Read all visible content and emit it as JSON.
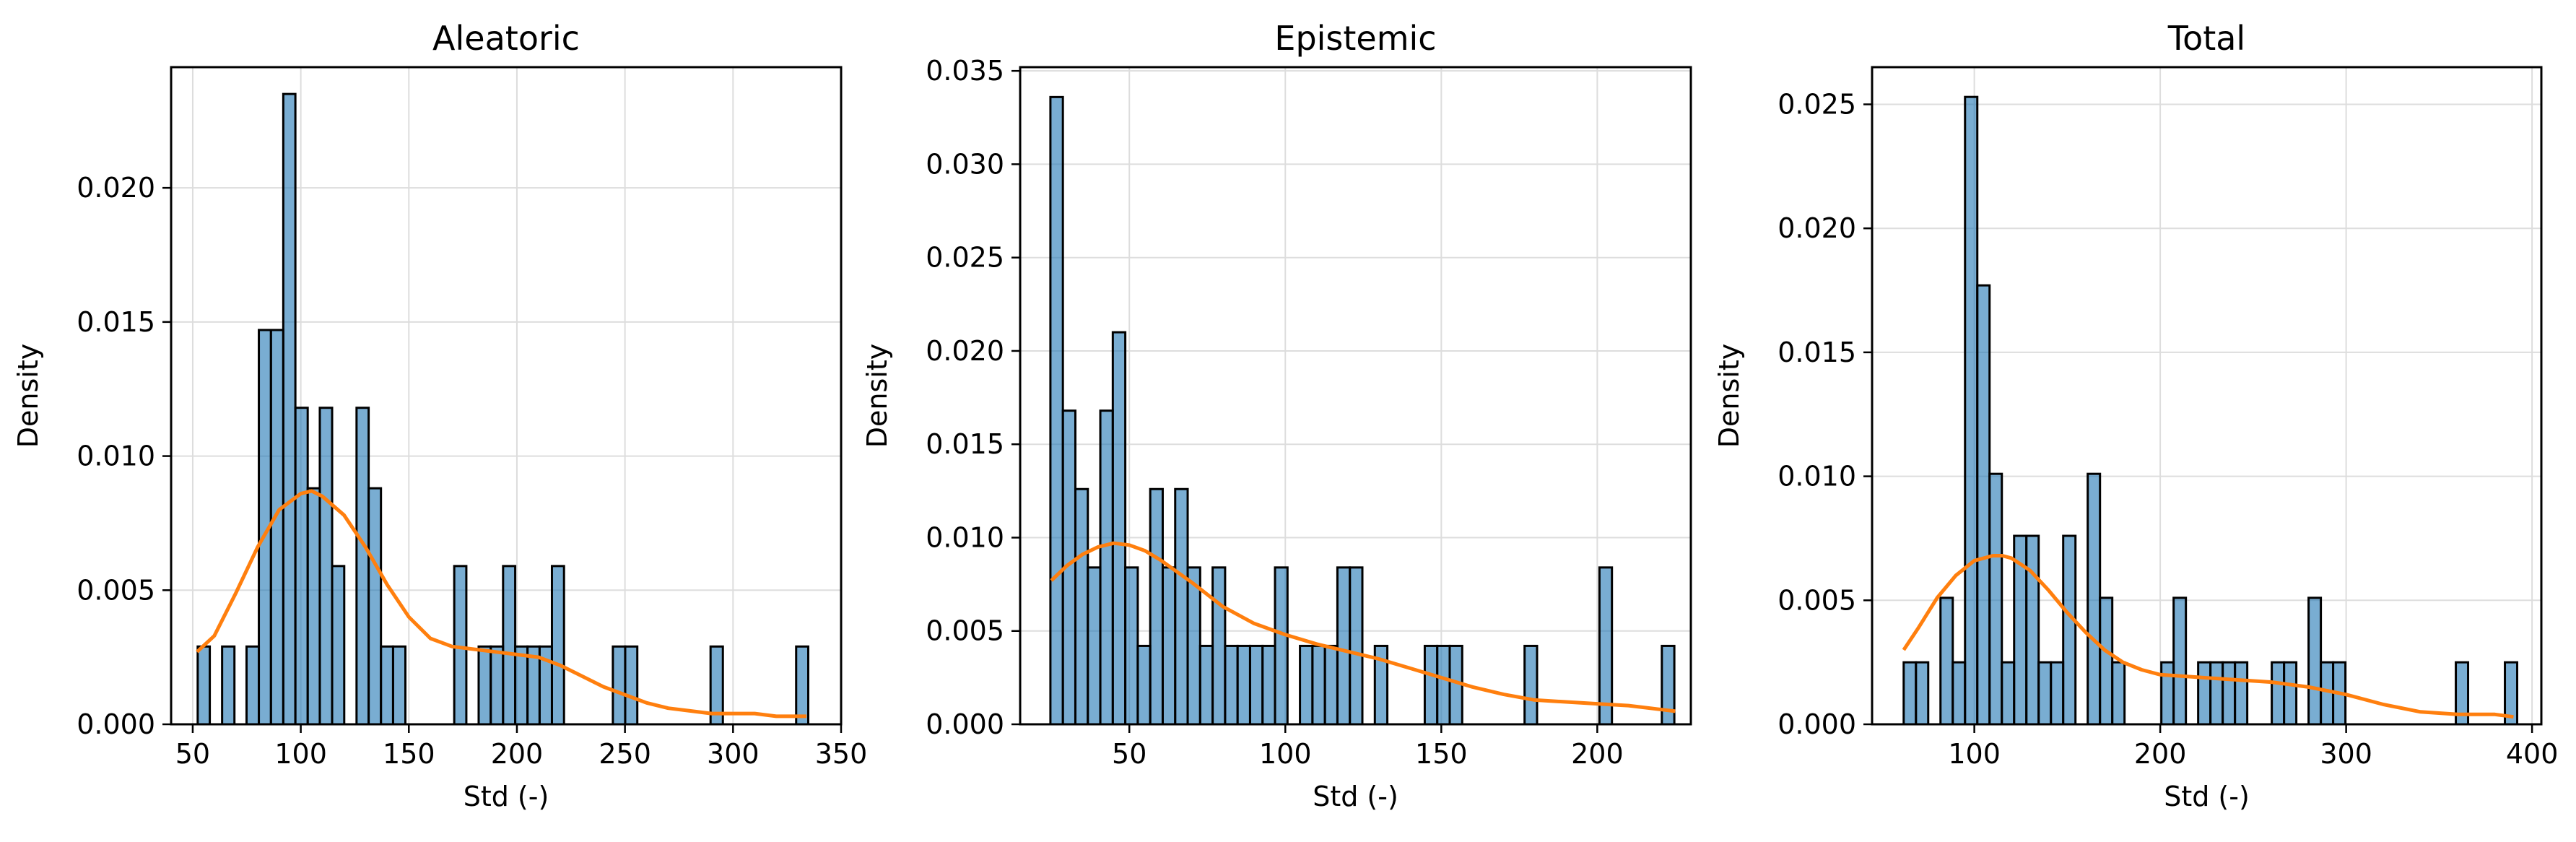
{
  "colors": {
    "bar_fill": "#1f77b4",
    "bar_edge": "#000000",
    "kde_line": "#ff7f0e",
    "grid": "#dddddd"
  },
  "chart_data": [
    {
      "type": "bar",
      "title": "Aleatoric",
      "xlabel": "Std (-)",
      "ylabel": "Density",
      "xlim": [
        40,
        350
      ],
      "ylim": [
        0,
        0.0245
      ],
      "xticks": [
        50,
        100,
        150,
        200,
        250,
        300,
        350
      ],
      "yticks": [
        0.0,
        0.005,
        0.01,
        0.015,
        0.02
      ],
      "xtick_labels": [
        "50",
        "100",
        "150",
        "200",
        "250",
        "300",
        "350"
      ],
      "ytick_labels": [
        "0.000",
        "0.005",
        "0.010",
        "0.015",
        "0.020"
      ],
      "grid": true,
      "bin_edges": [
        52.3,
        57.9,
        63.6,
        69.3,
        74.9,
        80.6,
        86.2,
        91.9,
        97.5,
        103.2,
        108.8,
        114.5,
        120.1,
        125.8,
        131.4,
        137.1,
        142.7,
        148.4,
        154.0,
        159.7,
        165.3,
        171.0,
        176.6,
        182.3,
        187.9,
        193.6,
        199.2,
        204.9,
        210.5,
        216.2,
        221.8,
        227.5,
        233.1,
        238.8,
        244.4,
        250.1,
        255.7,
        261.4,
        267.0,
        272.7,
        278.3,
        284.0,
        289.6,
        295.3,
        300.9,
        306.6,
        312.2,
        317.9,
        323.5,
        329.2,
        334.8
      ],
      "densities": [
        0.0029,
        0,
        0.0029,
        0,
        0.0029,
        0.0147,
        0.0147,
        0.0235,
        0.0118,
        0.0088,
        0.0118,
        0.0059,
        0,
        0.0118,
        0.0088,
        0.0029,
        0.0029,
        0,
        0,
        0,
        0,
        0.0059,
        0,
        0.0029,
        0.0029,
        0.0059,
        0.0029,
        0.0029,
        0.0029,
        0.0059,
        0,
        0,
        0,
        0,
        0.0029,
        0.0029,
        0,
        0,
        0,
        0,
        0,
        0,
        0.0029,
        0,
        0,
        0,
        0,
        0,
        0,
        0.0029
      ],
      "kde": {
        "x": [
          52,
          60,
          70,
          80,
          90,
          100,
          105,
          110,
          120,
          130,
          140,
          150,
          160,
          170,
          180,
          190,
          200,
          210,
          220,
          230,
          240,
          250,
          260,
          270,
          280,
          290,
          300,
          310,
          320,
          334
        ],
        "y": [
          0.0027,
          0.0033,
          0.0049,
          0.0066,
          0.008,
          0.0086,
          0.0087,
          0.0085,
          0.0078,
          0.0066,
          0.0052,
          0.004,
          0.0032,
          0.0029,
          0.0028,
          0.0027,
          0.0026,
          0.0025,
          0.0022,
          0.0018,
          0.0014,
          0.0011,
          0.0008,
          0.0006,
          0.0005,
          0.0004,
          0.0004,
          0.0004,
          0.0003,
          0.0003
        ]
      }
    },
    {
      "type": "bar",
      "title": "Epistemic",
      "xlabel": "Std (-)",
      "ylabel": "Density",
      "xlim": [
        15,
        230
      ],
      "ylim": [
        0,
        0.0352
      ],
      "xticks": [
        50,
        100,
        150,
        200
      ],
      "yticks": [
        0.0,
        0.005,
        0.01,
        0.015,
        0.02,
        0.025,
        0.03,
        0.035
      ],
      "xtick_labels": [
        "50",
        "100",
        "150",
        "200"
      ],
      "ytick_labels": [
        "0.000",
        "0.005",
        "0.010",
        "0.015",
        "0.020",
        "0.025",
        "0.030",
        "0.035"
      ],
      "grid": true,
      "bin_edges": [
        24.7,
        28.7,
        32.7,
        36.7,
        40.7,
        44.7,
        48.7,
        52.7,
        56.7,
        60.7,
        64.7,
        68.7,
        72.7,
        76.7,
        80.7,
        84.7,
        88.7,
        92.7,
        96.7,
        100.7,
        104.7,
        108.7,
        112.7,
        116.7,
        120.7,
        124.7,
        128.7,
        132.7,
        136.7,
        140.7,
        144.7,
        148.7,
        152.7,
        156.7,
        160.7,
        164.7,
        168.7,
        172.7,
        176.7,
        180.7,
        184.7,
        188.7,
        192.7,
        196.7,
        200.7,
        204.7,
        208.7,
        212.7,
        216.7,
        220.7,
        224.7
      ],
      "densities": [
        0.0336,
        0.0168,
        0.0126,
        0.0084,
        0.0168,
        0.021,
        0.0084,
        0.0042,
        0.0126,
        0.0084,
        0.0126,
        0.0084,
        0.0042,
        0.0084,
        0.0042,
        0.0042,
        0.0042,
        0.0042,
        0.0084,
        0,
        0.0042,
        0.0042,
        0.0042,
        0.0084,
        0.0084,
        0,
        0.0042,
        0,
        0,
        0,
        0.0042,
        0.0042,
        0.0042,
        0,
        0,
        0,
        0,
        0,
        0.0042,
        0,
        0,
        0,
        0,
        0,
        0.0084,
        0,
        0,
        0,
        0,
        0.0042
      ],
      "kde": {
        "x": [
          25,
          30,
          35,
          40,
          45,
          50,
          55,
          60,
          70,
          80,
          90,
          100,
          110,
          120,
          130,
          140,
          150,
          160,
          170,
          180,
          190,
          200,
          210,
          220,
          225
        ],
        "y": [
          0.0077,
          0.0085,
          0.0091,
          0.0095,
          0.0097,
          0.0096,
          0.0093,
          0.0088,
          0.0076,
          0.0063,
          0.0054,
          0.0048,
          0.0043,
          0.0039,
          0.0035,
          0.003,
          0.0025,
          0.002,
          0.0016,
          0.0013,
          0.0012,
          0.0011,
          0.001,
          0.0008,
          0.0007
        ]
      }
    },
    {
      "type": "bar",
      "title": "Total",
      "xlabel": "Std (-)",
      "ylabel": "Density",
      "xlim": [
        45,
        405
      ],
      "ylim": [
        0,
        0.0265
      ],
      "xticks": [
        100,
        200,
        300,
        400
      ],
      "yticks": [
        0.0,
        0.005,
        0.01,
        0.015,
        0.02,
        0.025
      ],
      "xtick_labels": [
        "100",
        "200",
        "300",
        "400"
      ],
      "ytick_labels": [
        "0.000",
        "0.005",
        "0.010",
        "0.015",
        "0.020",
        "0.025"
      ],
      "grid": true,
      "bin_edges": [
        62.0,
        68.6,
        75.2,
        81.8,
        88.4,
        95.0,
        101.6,
        108.2,
        114.8,
        121.4,
        128.0,
        134.6,
        141.2,
        147.8,
        154.4,
        161.0,
        167.6,
        174.2,
        180.8,
        187.4,
        194.0,
        200.6,
        207.2,
        213.8,
        220.4,
        227.0,
        233.6,
        240.2,
        246.8,
        253.4,
        260.0,
        266.6,
        273.2,
        279.8,
        286.4,
        293.0,
        299.6,
        306.2,
        312.8,
        319.4,
        326.0,
        332.6,
        339.2,
        345.8,
        352.4,
        359.0,
        365.6,
        372.2,
        378.8,
        385.4,
        392.0
      ],
      "densities": [
        0.0025,
        0.0025,
        0,
        0.0051,
        0.0025,
        0.0253,
        0.0177,
        0.0101,
        0.0025,
        0.0076,
        0.0076,
        0.0025,
        0.0025,
        0.0076,
        0,
        0.0101,
        0.0051,
        0.0025,
        0,
        0,
        0,
        0.0025,
        0.0051,
        0,
        0.0025,
        0.0025,
        0.0025,
        0.0025,
        0,
        0,
        0.0025,
        0.0025,
        0,
        0.0051,
        0.0025,
        0.0025,
        0,
        0,
        0,
        0,
        0,
        0,
        0,
        0,
        0,
        0.0025,
        0,
        0,
        0,
        0.0025
      ],
      "kde": {
        "x": [
          62,
          70,
          80,
          90,
          100,
          110,
          115,
          120,
          130,
          140,
          150,
          160,
          170,
          180,
          190,
          200,
          220,
          240,
          260,
          280,
          300,
          320,
          340,
          360,
          380,
          390
        ],
        "y": [
          0.003,
          0.0039,
          0.0051,
          0.006,
          0.0066,
          0.0068,
          0.0068,
          0.0067,
          0.0062,
          0.0054,
          0.0045,
          0.0037,
          0.003,
          0.0025,
          0.0022,
          0.002,
          0.0019,
          0.0018,
          0.0017,
          0.0015,
          0.0012,
          0.0008,
          0.0005,
          0.0004,
          0.0004,
          0.0003
        ]
      }
    }
  ]
}
